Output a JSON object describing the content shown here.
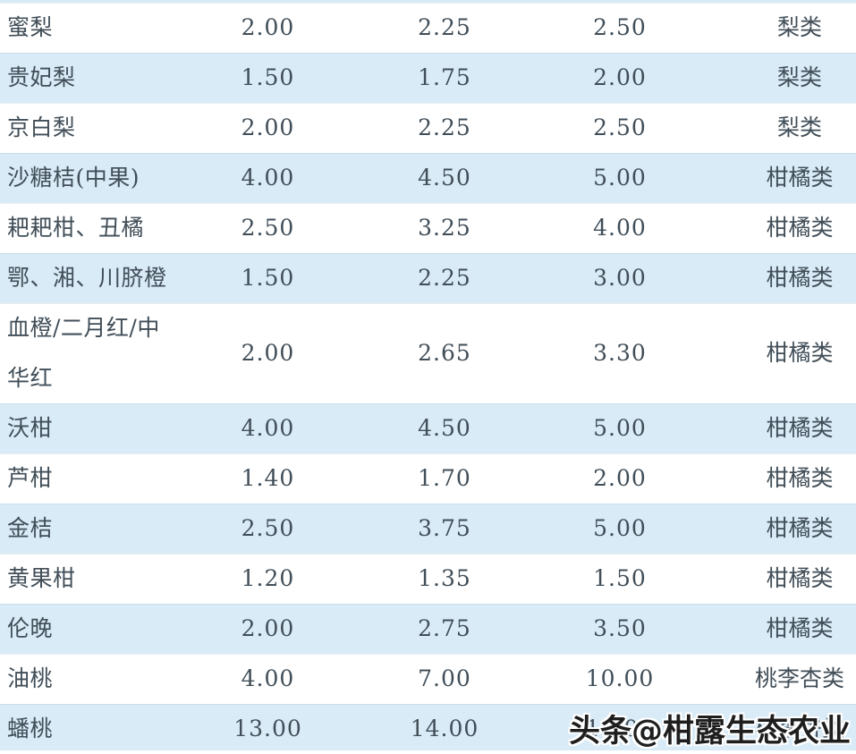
{
  "colors": {
    "row_alt_blue": "#d8ebf7",
    "row_base_white": "#ffffff",
    "table_text": "#414e58",
    "watermark_text_color": "#1e1e1e",
    "watermark_outline": "#ffffff"
  },
  "watermark": {
    "text": "头条@柑露生态农业"
  },
  "table": {
    "rows": [
      {
        "name": "蜜梨",
        "price_1": "2.00",
        "price_2": "2.25",
        "price_3": "2.50",
        "category": "梨类"
      },
      {
        "name": "贵妃梨",
        "price_1": "1.50",
        "price_2": "1.75",
        "price_3": "2.00",
        "category": "梨类"
      },
      {
        "name": "京白梨",
        "price_1": "2.00",
        "price_2": "2.25",
        "price_3": "2.50",
        "category": "梨类"
      },
      {
        "name": "沙糖桔(中果)",
        "price_1": "4.00",
        "price_2": "4.50",
        "price_3": "5.00",
        "category": "柑橘类"
      },
      {
        "name": "耙耙柑、丑橘",
        "price_1": "2.50",
        "price_2": "3.25",
        "price_3": "4.00",
        "category": "柑橘类"
      },
      {
        "name": "鄂、湘、川脐橙",
        "price_1": "1.50",
        "price_2": "2.25",
        "price_3": "3.00",
        "category": "柑橘类"
      },
      {
        "name": "血橙/二月红/中华红",
        "price_1": "2.00",
        "price_2": "2.65",
        "price_3": "3.30",
        "category": "柑橘类"
      },
      {
        "name": "沃柑",
        "price_1": "4.00",
        "price_2": "4.50",
        "price_3": "5.00",
        "category": "柑橘类"
      },
      {
        "name": "芦柑",
        "price_1": "1.40",
        "price_2": "1.70",
        "price_3": "2.00",
        "category": "柑橘类"
      },
      {
        "name": "金桔",
        "price_1": "2.50",
        "price_2": "3.75",
        "price_3": "5.00",
        "category": "柑橘类"
      },
      {
        "name": "黄果柑",
        "price_1": "1.20",
        "price_2": "1.35",
        "price_3": "1.50",
        "category": "柑橘类"
      },
      {
        "name": "伦晚",
        "price_1": "2.00",
        "price_2": "2.75",
        "price_3": "3.50",
        "category": "柑橘类"
      },
      {
        "name": "油桃",
        "price_1": "4.00",
        "price_2": "7.00",
        "price_3": "10.00",
        "category": "桃李杏类"
      },
      {
        "name": "蟠桃",
        "price_1": "13.00",
        "price_2": "14.00",
        "price_3": "15.00",
        "category": "桃李杏类"
      }
    ]
  }
}
